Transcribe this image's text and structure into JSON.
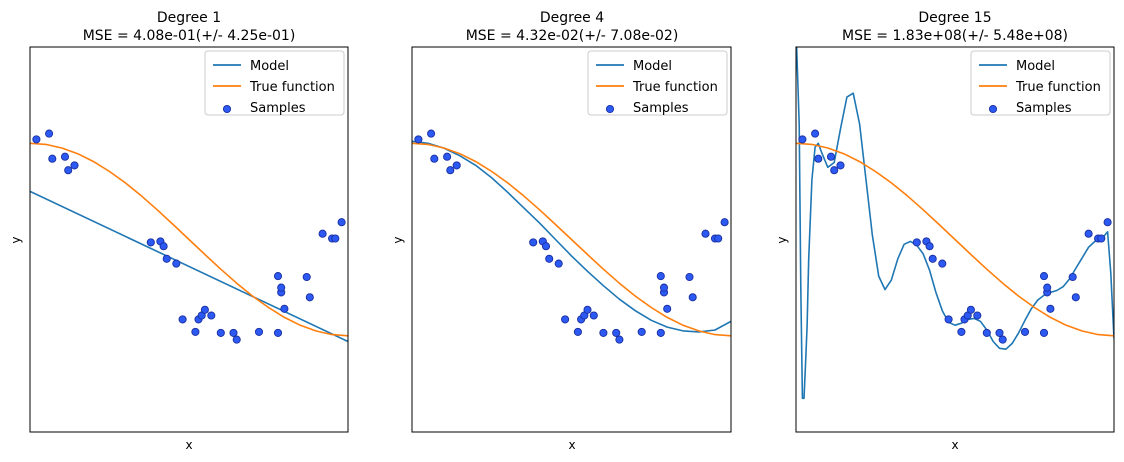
{
  "colors": {
    "model": "#1f77b4",
    "true_function": "#ff7f0e",
    "samples_fill": "#2c59f2",
    "samples_edge": "#1a2fa0"
  },
  "chart_data": [
    {
      "type": "line",
      "title": "Degree 1",
      "subtitle": "MSE = 4.08e-01(+/- 4.25e-01)",
      "xlabel": "x",
      "ylabel": "y",
      "xlim": [
        0,
        1
      ],
      "ylim": [
        -2,
        2
      ],
      "xticks": "none",
      "yticks": "none",
      "legend_position": "top-right",
      "legend": [
        "Model",
        "True function",
        "Samples"
      ],
      "samples": {
        "name": "Samples",
        "x": [
          0.02,
          0.06,
          0.07,
          0.11,
          0.12,
          0.14,
          0.38,
          0.41,
          0.42,
          0.43,
          0.46,
          0.48,
          0.52,
          0.53,
          0.54,
          0.55,
          0.57,
          0.6,
          0.64,
          0.65,
          0.72,
          0.78,
          0.78,
          0.79,
          0.79,
          0.8,
          0.87,
          0.88,
          0.92,
          0.95,
          0.96,
          0.98
        ],
        "y": [
          1.04,
          1.1,
          0.84,
          0.86,
          0.72,
          0.77,
          -0.03,
          -0.02,
          -0.07,
          -0.2,
          -0.25,
          -0.83,
          -0.96,
          -0.83,
          -0.79,
          -0.73,
          -0.79,
          -0.97,
          -0.97,
          -1.04,
          -0.96,
          -0.97,
          -0.38,
          -0.55,
          -0.5,
          -0.72,
          -0.39,
          -0.6,
          0.06,
          0.01,
          0.01,
          0.18
        ]
      },
      "model": {
        "name": "Model",
        "x": [
          0,
          1
        ],
        "y": [
          0.5,
          -1.06
        ]
      },
      "true_function": {
        "name": "True function",
        "x": [
          0,
          0.05,
          0.1,
          0.15,
          0.2,
          0.25,
          0.3,
          0.35,
          0.4,
          0.45,
          0.5,
          0.55,
          0.6,
          0.65,
          0.7,
          0.75,
          0.8,
          0.85,
          0.9,
          0.95,
          1.0
        ],
        "y": [
          1.0,
          0.988,
          0.951,
          0.891,
          0.809,
          0.707,
          0.588,
          0.454,
          0.309,
          0.156,
          0.0,
          -0.156,
          -0.309,
          -0.454,
          -0.588,
          -0.707,
          -0.809,
          -0.891,
          -0.951,
          -0.988,
          -1.0
        ]
      }
    },
    {
      "type": "line",
      "title": "Degree 4",
      "subtitle": "MSE = 4.32e-02(+/- 7.08e-02)",
      "xlabel": "x",
      "ylabel": "y",
      "xlim": [
        0,
        1
      ],
      "ylim": [
        -2,
        2
      ],
      "xticks": "none",
      "yticks": "none",
      "legend_position": "top-right",
      "legend": [
        "Model",
        "True function",
        "Samples"
      ],
      "samples": {
        "name": "Samples",
        "x": [
          0.02,
          0.06,
          0.07,
          0.11,
          0.12,
          0.14,
          0.38,
          0.41,
          0.42,
          0.43,
          0.46,
          0.48,
          0.52,
          0.53,
          0.54,
          0.55,
          0.57,
          0.6,
          0.64,
          0.65,
          0.72,
          0.78,
          0.78,
          0.79,
          0.79,
          0.8,
          0.87,
          0.88,
          0.92,
          0.95,
          0.96,
          0.98
        ],
        "y": [
          1.04,
          1.1,
          0.84,
          0.86,
          0.72,
          0.77,
          -0.03,
          -0.02,
          -0.07,
          -0.2,
          -0.25,
          -0.83,
          -0.96,
          -0.83,
          -0.79,
          -0.73,
          -0.79,
          -0.97,
          -0.97,
          -1.04,
          -0.96,
          -0.97,
          -0.38,
          -0.55,
          -0.5,
          -0.72,
          -0.39,
          -0.6,
          0.06,
          0.01,
          0.01,
          0.18
        ]
      },
      "model": {
        "name": "Model",
        "x": [
          0,
          0.05,
          0.1,
          0.15,
          0.2,
          0.25,
          0.3,
          0.35,
          0.4,
          0.45,
          0.5,
          0.55,
          0.6,
          0.65,
          0.7,
          0.75,
          0.8,
          0.85,
          0.9,
          0.95,
          1.0
        ],
        "y": [
          1.02,
          1.0,
          0.95,
          0.87,
          0.77,
          0.64,
          0.49,
          0.33,
          0.17,
          0.0,
          -0.17,
          -0.33,
          -0.48,
          -0.62,
          -0.74,
          -0.84,
          -0.91,
          -0.95,
          -0.96,
          -0.94,
          -0.85
        ]
      },
      "true_function": {
        "name": "True function",
        "x": [
          0,
          0.05,
          0.1,
          0.15,
          0.2,
          0.25,
          0.3,
          0.35,
          0.4,
          0.45,
          0.5,
          0.55,
          0.6,
          0.65,
          0.7,
          0.75,
          0.8,
          0.85,
          0.9,
          0.95,
          1.0
        ],
        "y": [
          1.0,
          0.988,
          0.951,
          0.891,
          0.809,
          0.707,
          0.588,
          0.454,
          0.309,
          0.156,
          0.0,
          -0.156,
          -0.309,
          -0.454,
          -0.588,
          -0.707,
          -0.809,
          -0.891,
          -0.951,
          -0.988,
          -1.0
        ]
      }
    },
    {
      "type": "line",
      "title": "Degree 15",
      "subtitle": "MSE = 1.83e+08(+/- 5.48e+08)",
      "xlabel": "x",
      "ylabel": "y",
      "xlim": [
        0,
        1
      ],
      "ylim": [
        -2,
        2
      ],
      "xticks": "none",
      "yticks": "none",
      "legend_position": "top-right",
      "legend": [
        "Model",
        "True function",
        "Samples"
      ],
      "samples": {
        "name": "Samples",
        "x": [
          0.02,
          0.06,
          0.07,
          0.11,
          0.12,
          0.14,
          0.38,
          0.41,
          0.42,
          0.43,
          0.46,
          0.48,
          0.52,
          0.53,
          0.54,
          0.55,
          0.57,
          0.6,
          0.64,
          0.65,
          0.72,
          0.78,
          0.78,
          0.79,
          0.79,
          0.8,
          0.87,
          0.88,
          0.92,
          0.95,
          0.96,
          0.98
        ],
        "y": [
          1.04,
          1.1,
          0.84,
          0.86,
          0.72,
          0.77,
          -0.03,
          -0.02,
          -0.07,
          -0.2,
          -0.25,
          -0.83,
          -0.96,
          -0.83,
          -0.79,
          -0.73,
          -0.79,
          -0.97,
          -0.97,
          -1.04,
          -0.96,
          -0.97,
          -0.38,
          -0.55,
          -0.5,
          -0.72,
          -0.39,
          -0.6,
          0.06,
          0.01,
          0.01,
          0.18
        ]
      },
      "model": {
        "name": "Model",
        "x": [
          0.0,
          0.01,
          0.015,
          0.02,
          0.025,
          0.03,
          0.035,
          0.04,
          0.05,
          0.06,
          0.07,
          0.08,
          0.1,
          0.12,
          0.14,
          0.16,
          0.18,
          0.2,
          0.22,
          0.24,
          0.26,
          0.28,
          0.3,
          0.32,
          0.34,
          0.36,
          0.38,
          0.4,
          0.42,
          0.44,
          0.46,
          0.48,
          0.5,
          0.52,
          0.54,
          0.56,
          0.58,
          0.6,
          0.62,
          0.64,
          0.66,
          0.68,
          0.7,
          0.72,
          0.74,
          0.76,
          0.78,
          0.8,
          0.82,
          0.84,
          0.86,
          0.88,
          0.9,
          0.92,
          0.94,
          0.96,
          0.98,
          0.99,
          1.0
        ],
        "y": [
          2.2,
          1.2,
          -0.5,
          -1.65,
          -1.65,
          -1.3,
          -0.9,
          -0.2,
          0.62,
          0.96,
          1.0,
          0.91,
          0.75,
          0.8,
          1.15,
          1.48,
          1.52,
          1.2,
          0.62,
          0.05,
          -0.38,
          -0.52,
          -0.42,
          -0.2,
          -0.05,
          -0.02,
          -0.06,
          -0.15,
          -0.32,
          -0.55,
          -0.74,
          -0.86,
          -0.89,
          -0.87,
          -0.83,
          -0.82,
          -0.85,
          -0.94,
          -1.06,
          -1.13,
          -1.14,
          -1.08,
          -0.97,
          -0.84,
          -0.72,
          -0.63,
          -0.58,
          -0.55,
          -0.53,
          -0.49,
          -0.41,
          -0.3,
          -0.19,
          -0.08,
          -0.02,
          0.0,
          0.08,
          -0.35,
          -1.03
        ]
      },
      "true_function": {
        "name": "True function",
        "x": [
          0,
          0.05,
          0.1,
          0.15,
          0.2,
          0.25,
          0.3,
          0.35,
          0.4,
          0.45,
          0.5,
          0.55,
          0.6,
          0.65,
          0.7,
          0.75,
          0.8,
          0.85,
          0.9,
          0.95,
          1.0
        ],
        "y": [
          1.0,
          0.988,
          0.951,
          0.891,
          0.809,
          0.707,
          0.588,
          0.454,
          0.309,
          0.156,
          0.0,
          -0.156,
          -0.309,
          -0.454,
          -0.588,
          -0.707,
          -0.809,
          -0.891,
          -0.951,
          -0.988,
          -1.0
        ]
      }
    }
  ]
}
